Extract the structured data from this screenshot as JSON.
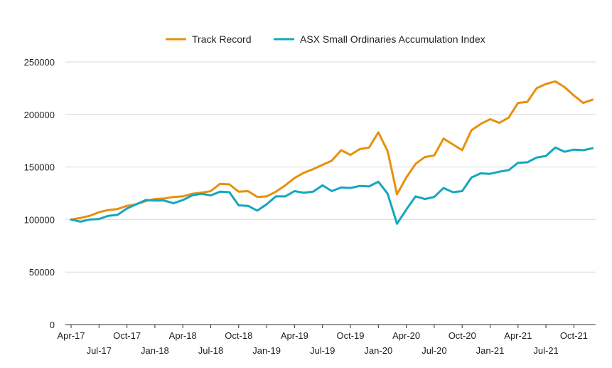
{
  "chart_data": {
    "type": "line",
    "title": "",
    "xlabel": "",
    "ylabel": "",
    "ylim": [
      0,
      250000
    ],
    "yticks": [
      0,
      50000,
      100000,
      150000,
      200000,
      250000
    ],
    "ytick_labels": [
      "0",
      "50000",
      "100000",
      "150000",
      "200000",
      "250000"
    ],
    "grid": true,
    "legend_position": "top-center",
    "xtick_labels_row1": [
      "Apr-17",
      "Oct-17",
      "Apr-18",
      "Oct-18",
      "Apr-19",
      "Oct-19",
      "Apr-20",
      "Oct-20",
      "Apr-21",
      "Oct-21"
    ],
    "xtick_labels_row2": [
      "Jul-17",
      "Jan-18",
      "Jul-18",
      "Jan-19",
      "Jul-19",
      "Jan-20",
      "Jul-20",
      "Jan-21",
      "Jul-21"
    ],
    "x": [
      "Apr-17",
      "May-17",
      "Jun-17",
      "Jul-17",
      "Aug-17",
      "Sep-17",
      "Oct-17",
      "Nov-17",
      "Dec-17",
      "Jan-18",
      "Feb-18",
      "Mar-18",
      "Apr-18",
      "May-18",
      "Jun-18",
      "Jul-18",
      "Aug-18",
      "Sep-18",
      "Oct-18",
      "Nov-18",
      "Dec-18",
      "Jan-19",
      "Feb-19",
      "Mar-19",
      "Apr-19",
      "May-19",
      "Jun-19",
      "Jul-19",
      "Aug-19",
      "Sep-19",
      "Oct-19",
      "Nov-19",
      "Dec-19",
      "Jan-20",
      "Feb-20",
      "Mar-20",
      "Apr-20",
      "May-20",
      "Jun-20",
      "Jul-20",
      "Aug-20",
      "Sep-20",
      "Oct-20",
      "Nov-20",
      "Dec-20",
      "Jan-21",
      "Feb-21",
      "Mar-21",
      "Apr-21",
      "May-21",
      "Jun-21",
      "Jul-21",
      "Aug-21",
      "Sep-21",
      "Oct-21",
      "Nov-21",
      "Dec-21"
    ],
    "series": [
      {
        "name": "Track Record",
        "color": "#E8900F",
        "values": [
          100000,
          101500,
          103500,
          107000,
          109000,
          110000,
          113000,
          114500,
          117500,
          119500,
          120000,
          121500,
          122000,
          124500,
          125500,
          127000,
          134000,
          133500,
          126500,
          127000,
          121500,
          122000,
          126500,
          132500,
          139500,
          144500,
          148000,
          152000,
          156000,
          166000,
          161500,
          167000,
          168500,
          183000,
          165000,
          124000,
          140000,
          153000,
          159500,
          161000,
          177000,
          171500,
          166000,
          185000,
          191000,
          195500,
          192000,
          197000,
          211000,
          212000,
          225000,
          229000,
          231500,
          226000,
          218000,
          211000,
          214000
        ]
      },
      {
        "name": "ASX Small Ordinaries Accumulation Index",
        "color": "#14A7BE",
        "values": [
          100000,
          98000,
          100000,
          100500,
          103500,
          104500,
          110500,
          114500,
          118500,
          118000,
          118000,
          115500,
          118500,
          123000,
          124500,
          123000,
          126500,
          126000,
          113500,
          113000,
          108500,
          114500,
          122000,
          122000,
          127000,
          125500,
          126500,
          132500,
          127000,
          130500,
          130000,
          132000,
          131500,
          136000,
          124500,
          96000,
          109500,
          122000,
          119500,
          121500,
          130000,
          126000,
          127000,
          140000,
          144000,
          143500,
          145500,
          147000,
          154000,
          154500,
          159000,
          160500,
          168500,
          164500,
          166500,
          166000,
          167800
        ]
      }
    ]
  }
}
